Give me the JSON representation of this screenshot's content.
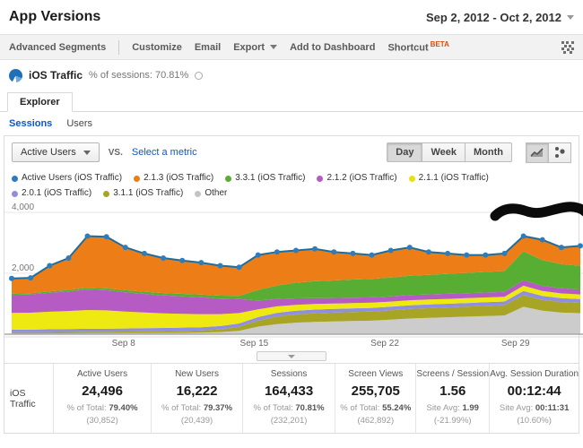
{
  "header": {
    "title": "App Versions",
    "date_range": "Sep 2, 2012 - Oct 2, 2012"
  },
  "toolbar": {
    "advanced_segments": "Advanced Segments",
    "customize": "Customize",
    "email": "Email",
    "export": "Export",
    "add_to_dashboard": "Add to Dashboard",
    "shortcut": "Shortcut",
    "beta": "BETA"
  },
  "report": {
    "name": "iOS Traffic",
    "sessions_share": "% of sessions: 70.81%"
  },
  "tabs": {
    "explorer": "Explorer"
  },
  "subnav": {
    "sessions": "Sessions",
    "users": "Users"
  },
  "controls": {
    "metric_selector": "Active Users",
    "vs_label": "VS.",
    "select_metric": "Select a metric",
    "granularity": {
      "day": "Day",
      "week": "Week",
      "month": "Month",
      "selected": "Day"
    }
  },
  "legend": {
    "items": [
      {
        "label": "Active Users (iOS Traffic)",
        "color": "#2d7dbd"
      },
      {
        "label": "2.1.3 (iOS Traffic)",
        "color": "#ed7e17"
      },
      {
        "label": "3.3.1 (iOS Traffic)",
        "color": "#58ad33"
      },
      {
        "label": "2.1.2 (iOS Traffic)",
        "color": "#b75bc4"
      },
      {
        "label": "2.1.1 (iOS Traffic)",
        "color": "#e8df15"
      },
      {
        "label": "2.0.1 (iOS Traffic)",
        "color": "#8f8fde"
      },
      {
        "label": "3.1.1 (iOS Traffic)",
        "color": "#a8a425"
      },
      {
        "label": "Other",
        "color": "#c4c4c4"
      }
    ]
  },
  "chart_data": {
    "type": "area",
    "title": "Active Users (iOS Traffic) by app version, stacked daily",
    "x_start_label": "Sep 2, 2012",
    "x_end_label": "Oct 2, 2012",
    "points": 31,
    "xticks": [
      {
        "index": 6,
        "label": "Sep 8"
      },
      {
        "index": 13,
        "label": "Sep 15"
      },
      {
        "index": 20,
        "label": "Sep 22"
      },
      {
        "index": 27,
        "label": "Sep 29"
      }
    ],
    "yticks": [
      {
        "value": 2000,
        "label": "2,000"
      },
      {
        "value": 4000,
        "label": "4,000"
      }
    ],
    "ylim": [
      0,
      4200
    ],
    "grid": "horizontal",
    "legend_position": "top",
    "line": {
      "name": "Active Users (iOS Traffic)",
      "color": "#1d6e9e",
      "dot_color": "#2d7dbd"
    },
    "series": [
      {
        "name": "Other",
        "color": "#cccccc",
        "values": [
          25,
          25,
          28,
          30,
          32,
          32,
          35,
          38,
          40,
          45,
          50,
          70,
          110,
          250,
          330,
          380,
          405,
          420,
          435,
          445,
          480,
          515,
          535,
          555,
          575,
          595,
          615,
          900,
          770,
          710,
          690
        ]
      },
      {
        "name": "3.1.1 (iOS Traffic)",
        "color": "#a8a425",
        "values": [
          40,
          40,
          44,
          46,
          50,
          50,
          54,
          56,
          60,
          64,
          70,
          90,
          130,
          195,
          250,
          270,
          283,
          288,
          293,
          298,
          303,
          313,
          318,
          323,
          328,
          333,
          338,
          380,
          357,
          345,
          340
        ]
      },
      {
        "name": "2.0.1 (iOS Traffic)",
        "color": "#8f8fde",
        "values": [
          85,
          85,
          90,
          92,
          96,
          96,
          100,
          102,
          106,
          108,
          108,
          108,
          112,
          118,
          122,
          122,
          122,
          122,
          122,
          122,
          122,
          122,
          122,
          122,
          122,
          122,
          122,
          138,
          128,
          126,
          124
        ]
      },
      {
        "name": "2.1.1 (iOS Traffic)",
        "color": "#efe912",
        "values": [
          550,
          555,
          575,
          595,
          615,
          605,
          555,
          515,
          475,
          452,
          432,
          392,
          342,
          252,
          212,
          192,
          182,
          177,
          172,
          170,
          167,
          164,
          162,
          160,
          158,
          156,
          154,
          172,
          162,
          157,
          152
        ]
      },
      {
        "name": "2.1.2 (iOS Traffic)",
        "color": "#b75bc4",
        "values": [
          590,
          600,
          622,
          642,
          672,
          662,
          632,
          612,
          592,
          572,
          552,
          512,
          462,
          292,
          242,
          212,
          192,
          182,
          177,
          174,
          172,
          170,
          168,
          166,
          164,
          162,
          160,
          182,
          172,
          167,
          162
        ]
      },
      {
        "name": "3.3.1 (iOS Traffic)",
        "color": "#58ad33",
        "values": [
          40,
          42,
          46,
          52,
          62,
          62,
          67,
          72,
          77,
          82,
          87,
          92,
          102,
          345,
          445,
          515,
          555,
          575,
          595,
          605,
          615,
          635,
          645,
          655,
          665,
          675,
          685,
          950,
          845,
          795,
          775
        ]
      },
      {
        "name": "2.1.3 (iOS Traffic)",
        "color": "#ed7e17",
        "values": [
          500,
          503,
          845,
          1043,
          1693,
          1693,
          1407,
          1255,
          1150,
          1097,
          1051,
          986,
          942,
          1148,
          1099,
          1059,
          1061,
          936,
          856,
          786,
          891,
          931,
          750,
          669,
          588,
          557,
          576,
          498,
          666,
          550,
          657
        ]
      }
    ]
  },
  "stats": {
    "row_label": "iOS Traffic",
    "columns": [
      {
        "label": "Active Users",
        "value": "24,496",
        "sub_label": "% of Total:",
        "sub_value": "79.40%",
        "sub_delta": "(30,852)"
      },
      {
        "label": "New Users",
        "value": "16,222",
        "sub_label": "% of Total:",
        "sub_value": "79.37%",
        "sub_delta": "(20,439)"
      },
      {
        "label": "Sessions",
        "value": "164,433",
        "sub_label": "% of Total:",
        "sub_value": "70.81%",
        "sub_delta": "(232,201)"
      },
      {
        "label": "Screen Views",
        "value": "255,705",
        "sub_label": "% of Total:",
        "sub_value": "55.24%",
        "sub_delta": "(462,892)"
      },
      {
        "label": "Screens / Session",
        "value": "1.56",
        "sub_label": "Site Avg:",
        "sub_value": "1.99",
        "sub_delta": "(-21.99%)"
      },
      {
        "label": "Avg. Session Duration",
        "value": "00:12:44",
        "sub_label": "Site Avg:",
        "sub_value": "00:11:31",
        "sub_delta": "(10.60%)"
      }
    ]
  }
}
